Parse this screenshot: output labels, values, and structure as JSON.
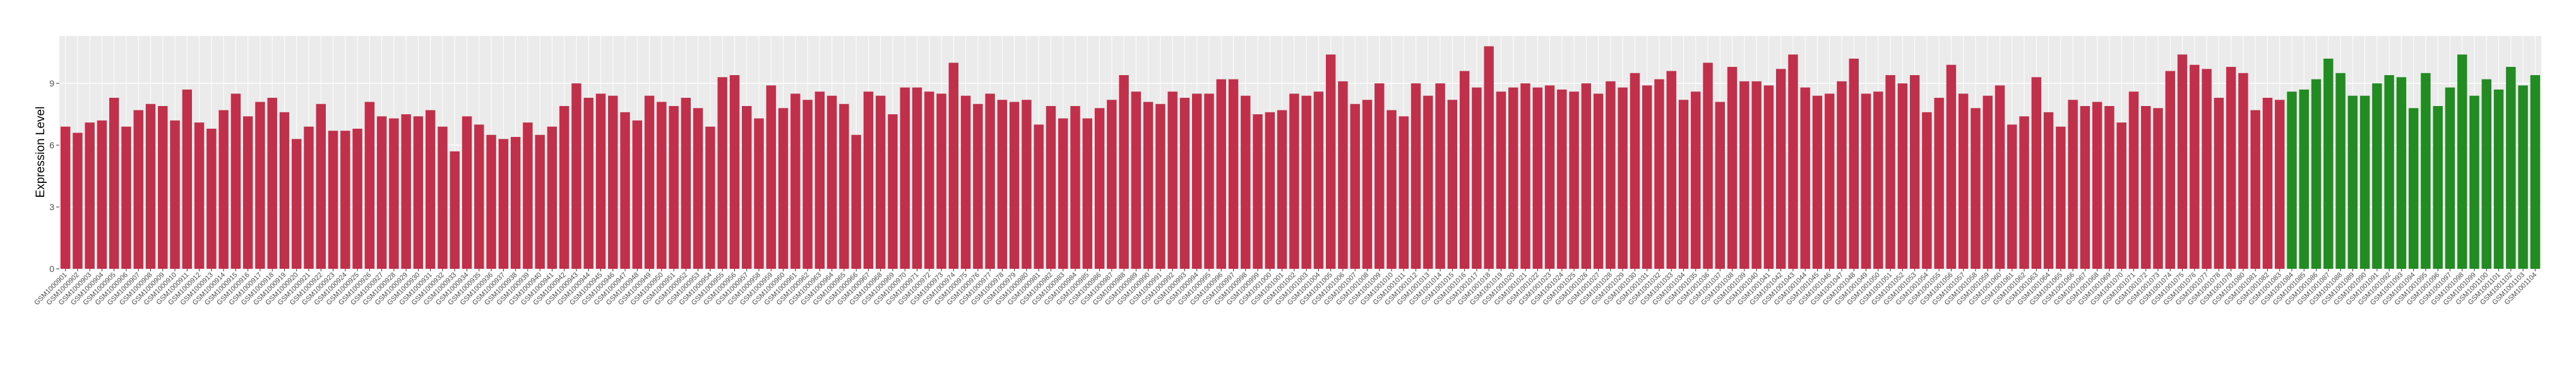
{
  "chart_data": {
    "type": "bar",
    "y_label": "Expression Level",
    "ylim": [
      0,
      11.3
    ],
    "yticks": [
      0,
      3,
      6,
      9
    ],
    "grid": true,
    "categories": [
      "GSM1000901",
      "GSM1000902",
      "GSM1000903",
      "GSM1000904",
      "GSM1000905",
      "GSM1000906",
      "GSM1000907",
      "GSM1000908",
      "GSM1000909",
      "GSM1000910",
      "GSM1000911",
      "GSM1000912",
      "GSM1000913",
      "GSM1000914",
      "GSM1000915",
      "GSM1000916",
      "GSM1000917",
      "GSM1000918",
      "GSM1000919",
      "GSM1000920",
      "GSM1000921",
      "GSM1000922",
      "GSM1000923",
      "GSM1000924",
      "GSM1000925",
      "GSM1000926",
      "GSM1000927",
      "GSM1000928",
      "GSM1000929",
      "GSM1000930",
      "GSM1000931",
      "GSM1000932",
      "GSM1000933",
      "GSM1000934",
      "GSM1000935",
      "GSM1000936",
      "GSM1000937",
      "GSM1000938",
      "GSM1000939",
      "GSM1000940",
      "GSM1000941",
      "GSM1000942",
      "GSM1000943",
      "GSM1000944",
      "GSM1000945",
      "GSM1000946",
      "GSM1000947",
      "GSM1000948",
      "GSM1000949",
      "GSM1000950",
      "GSM1000951",
      "GSM1000952",
      "GSM1000953",
      "GSM1000954",
      "GSM1000955",
      "GSM1000956",
      "GSM1000957",
      "GSM1000958",
      "GSM1000959",
      "GSM1000960",
      "GSM1000961",
      "GSM1000962",
      "GSM1000963",
      "GSM1000964",
      "GSM1000965",
      "GSM1000966",
      "GSM1000967",
      "GSM1000968",
      "GSM1000969",
      "GSM1000970",
      "GSM1000971",
      "GSM1000972",
      "GSM1000973",
      "GSM1000974",
      "GSM1000975",
      "GSM1000976",
      "GSM1000977",
      "GSM1000978",
      "GSM1000979",
      "GSM1000980",
      "GSM1000981",
      "GSM1000982",
      "GSM1000983",
      "GSM1000984",
      "GSM1000985",
      "GSM1000986",
      "GSM1000987",
      "GSM1000988",
      "GSM1000989",
      "GSM1000990",
      "GSM1000991",
      "GSM1000992",
      "GSM1000993",
      "GSM1000994",
      "GSM1000995",
      "GSM1000996",
      "GSM1000997",
      "GSM1000998",
      "GSM1000999",
      "GSM1001000",
      "GSM1001001",
      "GSM1001002",
      "GSM1001003",
      "GSM1001004",
      "GSM1001005",
      "GSM1001006",
      "GSM1001007",
      "GSM1001008",
      "GSM1001009",
      "GSM1001010",
      "GSM1001011",
      "GSM1001012",
      "GSM1001013",
      "GSM1001014",
      "GSM1001015",
      "GSM1001016",
      "GSM1001017",
      "GSM1001018",
      "GSM1001019",
      "GSM1001020",
      "GSM1001021",
      "GSM1001022",
      "GSM1001023",
      "GSM1001024",
      "GSM1001025",
      "GSM1001026",
      "GSM1001027",
      "GSM1001028",
      "GSM1001029",
      "GSM1001030",
      "GSM1001031",
      "GSM1001032",
      "GSM1001033",
      "GSM1001034",
      "GSM1001035",
      "GSM1001036",
      "GSM1001037",
      "GSM1001038",
      "GSM1001039",
      "GSM1001040",
      "GSM1001041",
      "GSM1001042",
      "GSM1001043",
      "GSM1001044",
      "GSM1001045",
      "GSM1001046",
      "GSM1001047",
      "GSM1001048",
      "GSM1001049",
      "GSM1001050",
      "GSM1001051",
      "GSM1001052",
      "GSM1001053",
      "GSM1001054",
      "GSM1001055",
      "GSM1001056",
      "GSM1001057",
      "GSM1001058",
      "GSM1001059",
      "GSM1001060",
      "GSM1001061",
      "GSM1001062",
      "GSM1001063",
      "GSM1001064",
      "GSM1001065",
      "GSM1001066",
      "GSM1001067",
      "GSM1001068",
      "GSM1001069",
      "GSM1001070",
      "GSM1001071",
      "GSM1001072",
      "GSM1001073",
      "GSM1001074",
      "GSM1001075",
      "GSM1001076",
      "GSM1001077",
      "GSM1001078",
      "GSM1001079",
      "GSM1001080",
      "GSM1001081",
      "GSM1001082",
      "GSM1001083",
      "GSM1001084",
      "GSM1001085",
      "GSM1001086",
      "GSM1001087",
      "GSM1001088",
      "GSM1001089",
      "GSM1001090",
      "GSM1001091",
      "GSM1001092",
      "GSM1001093",
      "GSM1001094",
      "GSM1001095",
      "GSM1001096",
      "GSM1001097",
      "GSM1001098",
      "GSM1001099",
      "GSM1001100",
      "GSM1001101",
      "GSM1001102",
      "GSM1001103",
      "GSM1001104"
    ],
    "values": [
      6.9,
      6.6,
      7.1,
      7.2,
      8.3,
      6.9,
      7.7,
      8.0,
      7.9,
      7.2,
      8.7,
      7.1,
      6.8,
      7.7,
      8.5,
      7.4,
      8.1,
      8.3,
      7.6,
      6.3,
      6.9,
      8.0,
      6.7,
      6.7,
      6.8,
      8.1,
      7.4,
      7.3,
      7.5,
      7.4,
      7.7,
      6.9,
      5.7,
      7.4,
      7.0,
      6.5,
      6.3,
      6.4,
      7.1,
      6.5,
      6.9,
      7.9,
      9.0,
      8.3,
      8.5,
      8.4,
      7.6,
      7.2,
      8.4,
      8.1,
      7.9,
      8.3,
      7.8,
      6.9,
      9.3,
      9.4,
      7.9,
      7.3,
      8.9,
      7.8,
      8.5,
      8.2,
      8.6,
      8.4,
      8.0,
      6.5,
      8.6,
      8.4,
      7.5,
      8.8,
      8.8,
      8.6,
      8.5,
      10.0,
      8.4,
      8.0,
      8.5,
      8.2,
      8.1,
      8.2,
      7.0,
      7.9,
      7.3,
      7.9,
      7.3,
      7.8,
      8.2,
      9.4,
      8.6,
      8.1,
      8.0,
      8.6,
      8.3,
      8.5,
      8.5,
      9.2,
      9.2,
      8.4,
      7.5,
      7.6,
      7.7,
      8.5,
      8.4,
      8.6,
      10.4,
      9.1,
      8.0,
      8.2,
      9.0,
      7.7,
      7.4,
      9.0,
      8.4,
      9.0,
      8.2,
      9.6,
      8.8,
      10.8,
      8.6,
      8.8,
      9.0,
      8.8,
      8.9,
      8.7,
      8.6,
      9.0,
      8.5,
      9.1,
      8.8,
      9.5,
      8.9,
      9.2,
      9.6,
      8.2,
      8.6,
      10.0,
      8.1,
      9.8,
      9.1,
      9.1,
      8.9,
      9.7,
      10.4,
      8.8,
      8.4,
      8.5,
      9.1,
      10.2,
      8.5,
      8.6,
      9.4,
      9.0,
      9.4,
      7.6,
      8.3,
      9.9,
      8.5,
      7.8,
      8.4,
      8.9,
      7.0,
      7.4,
      9.3,
      7.6,
      6.9,
      8.2,
      7.9,
      8.1,
      7.9,
      7.1,
      8.6,
      7.9,
      7.8,
      9.6,
      10.4,
      9.9,
      9.7,
      8.3,
      9.8,
      9.5,
      7.7,
      8.3,
      8.2,
      8.6,
      8.7,
      9.2,
      10.2,
      9.5,
      8.4,
      8.4,
      9.0,
      9.4,
      9.3,
      7.8,
      9.5,
      7.9,
      8.8,
      10.4,
      8.4,
      9.2,
      8.7,
      9.8,
      8.9,
      9.4
    ],
    "colors": [
      "#c1304a",
      "#c1304a",
      "#c1304a",
      "#c1304a",
      "#c1304a",
      "#c1304a",
      "#c1304a",
      "#c1304a",
      "#c1304a",
      "#c1304a",
      "#c1304a",
      "#c1304a",
      "#c1304a",
      "#c1304a",
      "#c1304a",
      "#c1304a",
      "#c1304a",
      "#c1304a",
      "#c1304a",
      "#c1304a",
      "#c1304a",
      "#c1304a",
      "#c1304a",
      "#c1304a",
      "#c1304a",
      "#c1304a",
      "#c1304a",
      "#c1304a",
      "#c1304a",
      "#c1304a",
      "#c1304a",
      "#c1304a",
      "#c1304a",
      "#c1304a",
      "#c1304a",
      "#c1304a",
      "#c1304a",
      "#c1304a",
      "#c1304a",
      "#c1304a",
      "#c1304a",
      "#c1304a",
      "#c1304a",
      "#c1304a",
      "#c1304a",
      "#c1304a",
      "#c1304a",
      "#c1304a",
      "#c1304a",
      "#c1304a",
      "#c1304a",
      "#c1304a",
      "#c1304a",
      "#c1304a",
      "#c1304a",
      "#c1304a",
      "#c1304a",
      "#c1304a",
      "#c1304a",
      "#c1304a",
      "#c1304a",
      "#c1304a",
      "#c1304a",
      "#c1304a",
      "#c1304a",
      "#c1304a",
      "#c1304a",
      "#c1304a",
      "#c1304a",
      "#c1304a",
      "#c1304a",
      "#c1304a",
      "#c1304a",
      "#c1304a",
      "#c1304a",
      "#c1304a",
      "#c1304a",
      "#c1304a",
      "#c1304a",
      "#c1304a",
      "#c1304a",
      "#c1304a",
      "#c1304a",
      "#c1304a",
      "#c1304a",
      "#c1304a",
      "#c1304a",
      "#c1304a",
      "#c1304a",
      "#c1304a",
      "#c1304a",
      "#c1304a",
      "#c1304a",
      "#c1304a",
      "#c1304a",
      "#c1304a",
      "#c1304a",
      "#c1304a",
      "#c1304a",
      "#c1304a",
      "#c1304a",
      "#c1304a",
      "#c1304a",
      "#c1304a",
      "#c1304a",
      "#c1304a",
      "#c1304a",
      "#c1304a",
      "#c1304a",
      "#c1304a",
      "#c1304a",
      "#c1304a",
      "#c1304a",
      "#c1304a",
      "#c1304a",
      "#c1304a",
      "#c1304a",
      "#c1304a",
      "#c1304a",
      "#c1304a",
      "#c1304a",
      "#c1304a",
      "#c1304a",
      "#c1304a",
      "#c1304a",
      "#c1304a",
      "#c1304a",
      "#c1304a",
      "#c1304a",
      "#c1304a",
      "#c1304a",
      "#c1304a",
      "#c1304a",
      "#c1304a",
      "#c1304a",
      "#c1304a",
      "#c1304a",
      "#c1304a",
      "#c1304a",
      "#c1304a",
      "#c1304a",
      "#c1304a",
      "#c1304a",
      "#c1304a",
      "#c1304a",
      "#c1304a",
      "#c1304a",
      "#c1304a",
      "#c1304a",
      "#c1304a",
      "#c1304a",
      "#c1304a",
      "#c1304a",
      "#c1304a",
      "#c1304a",
      "#c1304a",
      "#c1304a",
      "#c1304a",
      "#c1304a",
      "#c1304a",
      "#c1304a",
      "#c1304a",
      "#c1304a",
      "#c1304a",
      "#c1304a",
      "#c1304a",
      "#c1304a",
      "#c1304a",
      "#c1304a",
      "#c1304a",
      "#c1304a",
      "#c1304a",
      "#c1304a",
      "#c1304a",
      "#c1304a",
      "#c1304a",
      "#c1304a",
      "#c1304a",
      "#c1304a",
      "#c1304a",
      "#c1304a",
      "#c1304a",
      "#c1304a",
      "#228b22",
      "#228b22",
      "#228b22",
      "#228b22",
      "#228b22",
      "#228b22",
      "#228b22",
      "#228b22",
      "#228b22",
      "#228b22",
      "#228b22",
      "#228b22",
      "#228b22",
      "#228b22",
      "#228b22",
      "#228b22",
      "#228b22",
      "#228b22",
      "#228b22",
      "#228b22",
      "#228b22"
    ]
  }
}
